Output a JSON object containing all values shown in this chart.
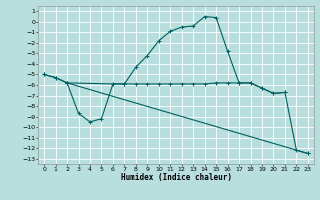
{
  "xlabel": "Humidex (Indice chaleur)",
  "bg_color": "#b8dede",
  "grid_color": "#d8f0f0",
  "line_color": "#006060",
  "xlim": [
    -0.5,
    23.5
  ],
  "ylim": [
    -13.5,
    1.5
  ],
  "xticks": [
    0,
    1,
    2,
    3,
    4,
    5,
    6,
    7,
    8,
    9,
    10,
    11,
    12,
    13,
    14,
    15,
    16,
    17,
    18,
    19,
    20,
    21,
    22,
    23
  ],
  "yticks": [
    1,
    0,
    -1,
    -2,
    -3,
    -4,
    -5,
    -6,
    -7,
    -8,
    -9,
    -10,
    -11,
    -12,
    -13
  ],
  "s1x": [
    0,
    1,
    2,
    6,
    7,
    8,
    9,
    10,
    11,
    12,
    13,
    14,
    15,
    16,
    17,
    18,
    19,
    20,
    21
  ],
  "s1y": [
    -5.0,
    -5.3,
    -5.8,
    -5.9,
    -5.9,
    -5.9,
    -5.9,
    -5.9,
    -5.9,
    -5.9,
    -5.9,
    -5.9,
    -5.8,
    -5.8,
    -5.8,
    -5.8,
    -6.3,
    -6.8,
    -6.7
  ],
  "s2x": [
    0,
    1,
    2,
    3,
    4,
    5,
    6,
    7,
    8,
    9,
    10,
    11,
    12,
    13,
    14,
    15,
    16,
    17,
    18,
    19,
    20,
    21,
    22,
    23
  ],
  "s2y": [
    -5.0,
    -5.3,
    -5.8,
    -8.7,
    -9.5,
    -9.2,
    -5.9,
    -5.9,
    -4.3,
    -3.2,
    -1.8,
    -0.9,
    -0.5,
    -0.4,
    0.5,
    0.4,
    -2.8,
    -5.8,
    -5.8,
    -6.3,
    -6.8,
    -6.7,
    -12.2,
    -12.5
  ],
  "s3x": [
    2,
    23
  ],
  "s3y": [
    -5.8,
    -12.5
  ]
}
